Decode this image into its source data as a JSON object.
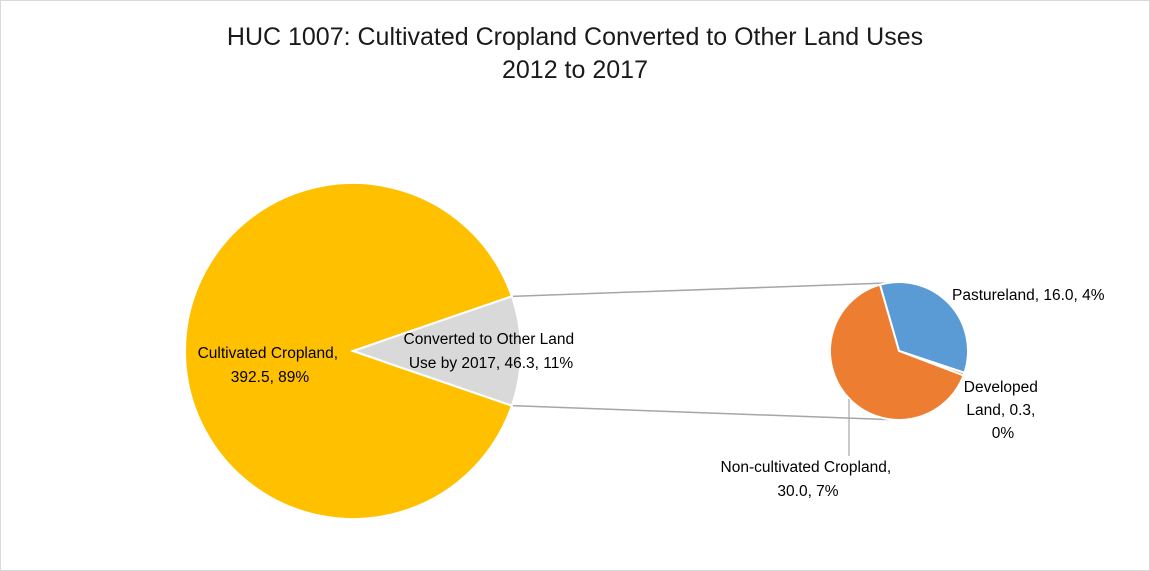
{
  "chart_data": {
    "type": "pie-of-pie",
    "title": "HUC 1007: Cultivated Cropland Converted to Other Land Uses",
    "subtitle": "2012 to 2017",
    "main_pie": {
      "slices": [
        {
          "key": "cultivated",
          "value": 392.5,
          "percent": 89,
          "color": "#ffc000",
          "label_lines": [
            "Cultivated Cropland,",
            "392.5, 89%"
          ]
        },
        {
          "key": "converted",
          "value": 46.3,
          "percent": 11,
          "color": "#d9d9d9",
          "label_lines": [
            "Converted to Other Land",
            "Use by 2017, 46.3, 11%"
          ]
        }
      ]
    },
    "secondary_pie": {
      "slices": [
        {
          "key": "pastureland",
          "value": 16.0,
          "percent": 4,
          "color": "#5b9bd5",
          "label_lines": [
            "Pastureland, 16.0, 4%"
          ]
        },
        {
          "key": "developed",
          "value": 0.3,
          "percent": 0,
          "color": "#ed7d31",
          "label_lines": [
            "Developed",
            "Land, 0.3,",
            "0%"
          ]
        },
        {
          "key": "noncultivated",
          "value": 30.0,
          "percent": 7,
          "color": "#ed7d31",
          "label_lines": [
            "Non-cultivated Cropland,",
            "30.0, 7%"
          ]
        }
      ]
    },
    "connector_color": "#a6a6a6",
    "legend": "none"
  }
}
